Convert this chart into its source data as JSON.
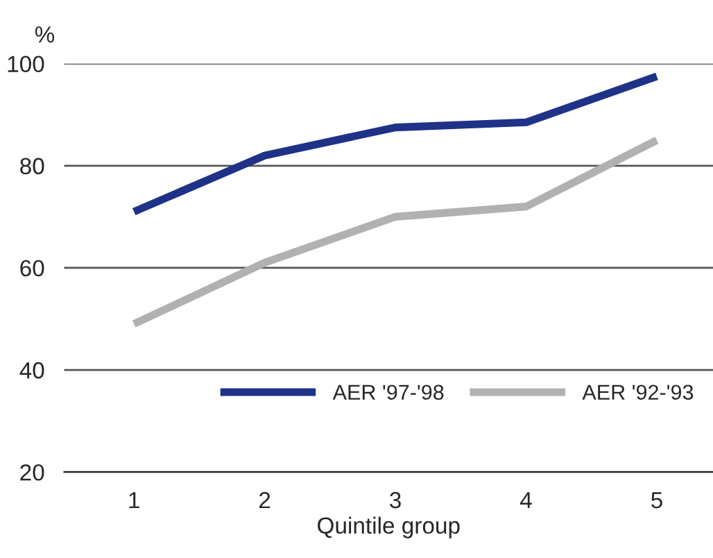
{
  "chart_data": {
    "type": "line",
    "xlabel": "Quintile group",
    "ylabel": "%",
    "categories": [
      "1",
      "2",
      "3",
      "4",
      "5"
    ],
    "series": [
      {
        "name": "AER '97-'98",
        "color": "#1f3288",
        "values": [
          71,
          82,
          87.5,
          88.5,
          97.5
        ]
      },
      {
        "name": "AER '92-'93",
        "color": "#b1b1b3",
        "values": [
          49,
          61,
          70,
          72,
          85
        ]
      }
    ],
    "ylim": [
      20,
      100
    ],
    "yticks": [
      20,
      40,
      60,
      80,
      100
    ],
    "grid": "y",
    "legend": "bottom right",
    "marker": "none",
    "line_style": "solid"
  }
}
